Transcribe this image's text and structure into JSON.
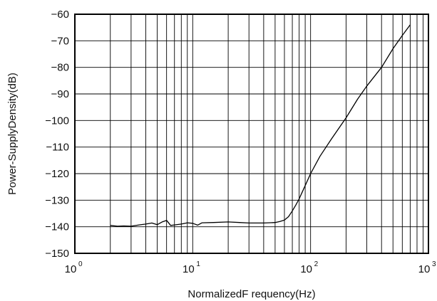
{
  "chart_data": {
    "type": "line",
    "title": "",
    "xlabel": "NormalizedF requency(Hz)",
    "ylabel": "Power-SupplyDensity(dB)",
    "xscale": "log",
    "xlim": [
      1,
      1000
    ],
    "ylim": [
      -150,
      -60
    ],
    "grid": true,
    "legend": "none",
    "x_ticks": [
      {
        "base": "10",
        "exp": "0"
      },
      {
        "base": "10",
        "exp": "1"
      },
      {
        "base": "10",
        "exp": "2"
      },
      {
        "base": "10",
        "exp": "3"
      }
    ],
    "y_ticks": [
      "−60",
      "−70",
      "−80",
      "−90",
      "−100",
      "−110",
      "−120",
      "−130",
      "−140",
      "−150"
    ],
    "series": [
      {
        "x": [
          2,
          2.3,
          2.6,
          3,
          3.5,
          4,
          4.5,
          5,
          5.5,
          6,
          6.5,
          7,
          8,
          9,
          10,
          11,
          12,
          15,
          20,
          25,
          30,
          40,
          50,
          55,
          60,
          65,
          70,
          75,
          80,
          90,
          100,
          120,
          150,
          200,
          250,
          300,
          400,
          500,
          600,
          700
        ],
        "y": [
          -139.5,
          -139.8,
          -139.7,
          -139.8,
          -139.3,
          -139,
          -138.6,
          -139.2,
          -138.2,
          -137.6,
          -139.5,
          -139.3,
          -139,
          -138.5,
          -138.7,
          -139.4,
          -138.5,
          -138.4,
          -138.2,
          -138.4,
          -138.6,
          -138.6,
          -138.4,
          -138,
          -137.5,
          -136.2,
          -134,
          -131.8,
          -129.5,
          -124.5,
          -120,
          -113.5,
          -107,
          -99,
          -92,
          -87,
          -80,
          -73,
          -68,
          -64
        ]
      }
    ]
  }
}
